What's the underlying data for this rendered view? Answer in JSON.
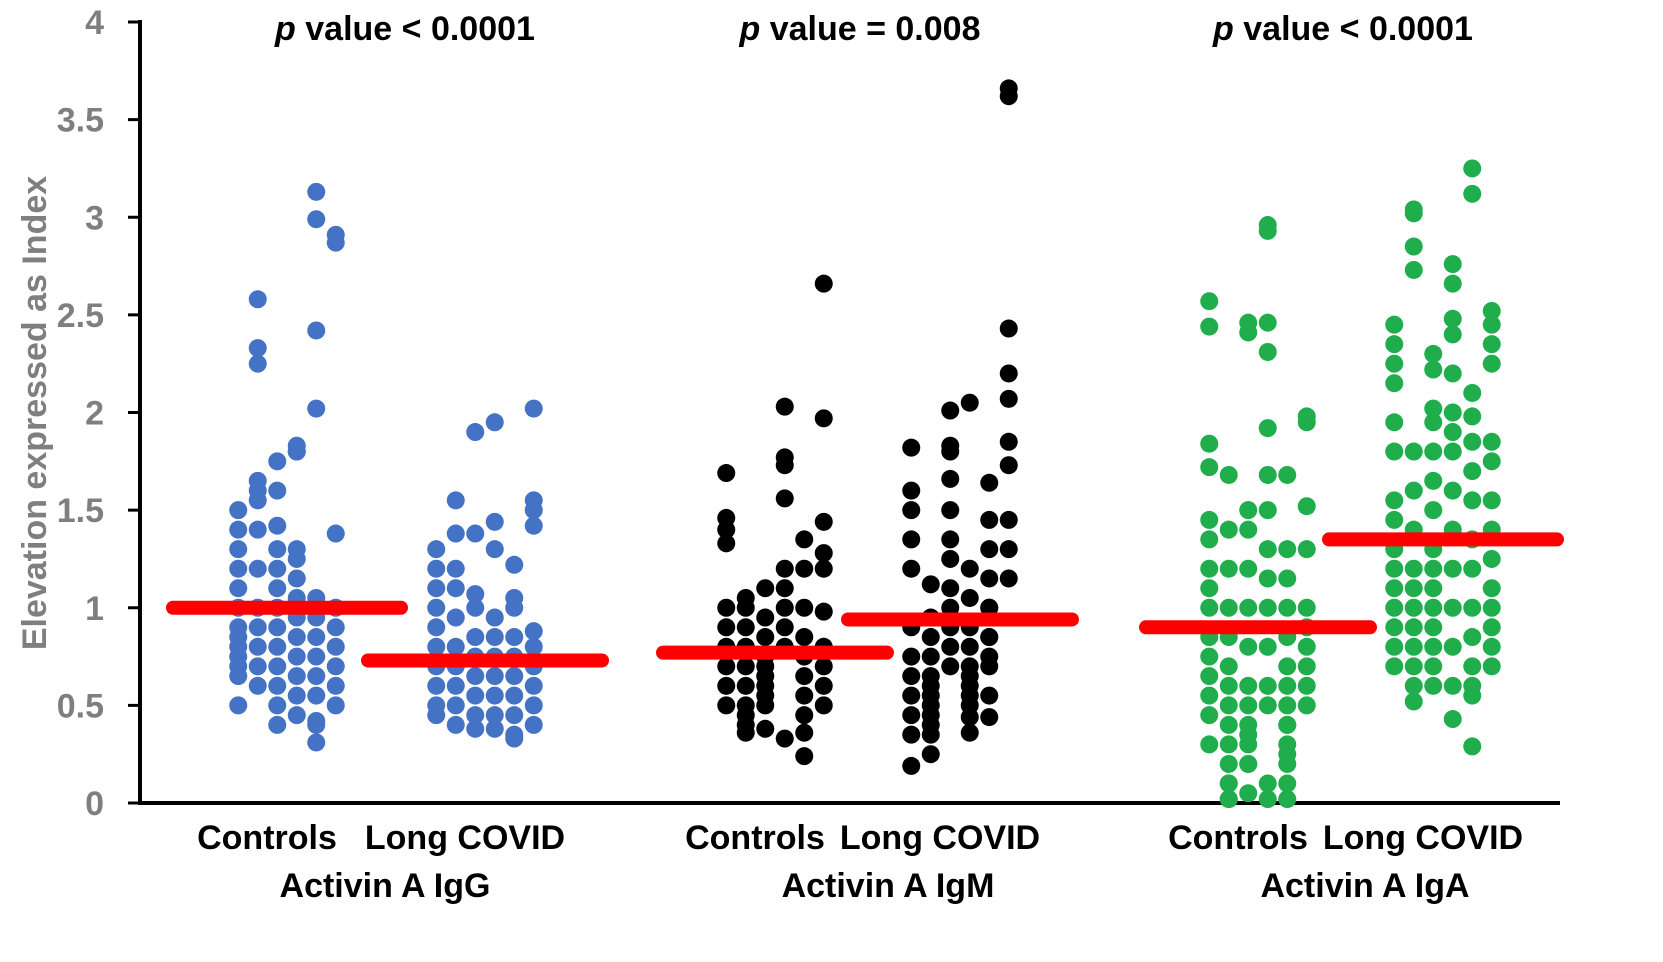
{
  "chart_data": {
    "type": "scatter",
    "ylabel": "Elevation expressed as Index",
    "ylim": [
      0,
      4
    ],
    "yticks": [
      0,
      0.5,
      1,
      1.5,
      2,
      2.5,
      3,
      3.5,
      4
    ],
    "ytick_labels": [
      "0",
      "0.5",
      "1",
      "1.5",
      "2",
      "2.5",
      "3",
      "3.5",
      "4"
    ],
    "median_color": "#ff0000",
    "groups": [
      {
        "name": "Activin A IgG",
        "p_symbol": "p",
        "p_text": " value < 0.0001",
        "color": "#4472c4",
        "categories": [
          {
            "name": "Controls",
            "median": 1.0,
            "values": [
              0.5,
              0.65,
              0.7,
              0.75,
              0.8,
              0.85,
              0.9,
              1.0,
              1.1,
              1.2,
              1.3,
              1.4,
              1.5,
              1.55,
              2.25,
              2.33,
              2.58,
              0.6,
              0.7,
              0.8,
              0.9,
              1.0,
              1.2,
              1.4,
              1.6,
              1.65,
              1.75,
              0.4,
              0.5,
              0.6,
              0.7,
              0.8,
              0.9,
              1.0,
              1.1,
              1.2,
              1.3,
              1.42,
              1.6,
              1.8,
              0.45,
              0.55,
              0.65,
              0.75,
              0.85,
              0.95,
              1.05,
              1.15,
              1.25,
              1.3,
              1.8,
              1.83,
              2.02,
              2.42,
              0.31,
              0.42,
              0.55,
              0.65,
              0.75,
              0.85,
              0.95,
              1.05,
              2.99,
              3.13,
              0.4,
              0.5,
              0.6,
              0.7,
              0.8,
              0.9,
              1.0,
              1.38,
              2.87,
              2.91
            ]
          },
          {
            "name": "Long COVID",
            "median": 0.73,
            "values": [
              0.45,
              0.5,
              0.6,
              0.7,
              0.8,
              0.9,
              1.0,
              1.1,
              1.2,
              1.3,
              1.38,
              1.55,
              0.4,
              0.5,
              0.6,
              0.7,
              0.8,
              0.95,
              1.1,
              1.2,
              1.38,
              0.38,
              0.45,
              0.55,
              0.65,
              0.75,
              0.85,
              1.0,
              1.07,
              1.9,
              1.95,
              0.38,
              0.45,
              0.55,
              0.65,
              0.75,
              0.85,
              0.95,
              1.3,
              1.44,
              0.35,
              0.45,
              0.55,
              0.65,
              0.75,
              0.85,
              1.0,
              1.05,
              1.22,
              0.33,
              0.4,
              0.5,
              0.6,
              0.7,
              0.8,
              0.88,
              1.42,
              1.5,
              1.55,
              2.02
            ]
          }
        ]
      },
      {
        "name": "Activin A IgM",
        "p_symbol": "p",
        "p_text": " value = 0.008",
        "color": "#000000",
        "categories": [
          {
            "name": "Controls",
            "median": 0.77,
            "values": [
              0.5,
              0.6,
              0.7,
              0.8,
              0.9,
              1.0,
              1.33,
              1.4,
              1.46,
              1.69,
              0.4,
              0.5,
              0.6,
              0.7,
              0.8,
              0.9,
              1.0,
              1.05,
              0.36,
              0.45,
              0.55,
              0.65,
              0.75,
              0.85,
              0.95,
              1.1,
              0.38,
              0.5,
              0.6,
              0.7,
              0.8,
              0.9,
              1.0,
              1.1,
              1.2,
              1.56,
              1.73,
              1.77,
              2.03,
              0.33,
              0.45,
              0.55,
              0.65,
              0.75,
              0.85,
              1.0,
              1.2,
              1.35,
              0.24,
              0.36,
              0.5,
              0.6,
              0.7,
              0.8,
              0.98,
              1.2,
              1.28,
              1.44,
              1.97,
              2.66
            ]
          },
          {
            "name": "Long COVID",
            "median": 0.94,
            "values": [
              0.19,
              0.35,
              0.45,
              0.55,
              0.65,
              0.75,
              0.9,
              1.2,
              1.35,
              1.5,
              1.6,
              1.82,
              0.25,
              0.35,
              0.45,
              0.55,
              0.65,
              0.75,
              0.85,
              0.95,
              1.12,
              0.4,
              0.5,
              0.6,
              0.7,
              0.8,
              0.9,
              1.0,
              1.1,
              1.25,
              1.35,
              1.5,
              1.66,
              1.8,
              1.83,
              2.01,
              2.05,
              0.36,
              0.5,
              0.6,
              0.7,
              0.8,
              0.9,
              1.05,
              1.2,
              0.44,
              0.55,
              0.65,
              0.75,
              0.85,
              1.0,
              1.15,
              1.3,
              1.45,
              1.64,
              0.44,
              0.55,
              0.7,
              0.85,
              1.0,
              1.15,
              1.3,
              1.45,
              1.73,
              1.85,
              2.07,
              2.2,
              2.43,
              3.62,
              3.66
            ]
          }
        ]
      },
      {
        "name": "Activin A IgA",
        "p_symbol": "p",
        "p_text": " value < 0.0001",
        "color": "#1fae4b",
        "categories": [
          {
            "name": "Controls",
            "median": 0.9,
            "values": [
              0.3,
              0.45,
              0.55,
              0.65,
              0.75,
              0.85,
              1.0,
              1.1,
              1.2,
              1.35,
              1.45,
              1.72,
              1.84,
              2.44,
              2.57,
              0.02,
              0.1,
              0.2,
              0.3,
              0.4,
              0.5,
              0.6,
              0.7,
              0.85,
              1.0,
              1.2,
              1.4,
              1.68,
              0.02,
              0.1,
              0.2,
              0.3,
              0.4,
              0.5,
              0.6,
              0.8,
              1.0,
              1.2,
              1.4,
              1.5,
              2.41,
              2.46,
              0.05,
              0.2,
              0.35,
              0.5,
              0.6,
              0.8,
              1.0,
              1.15,
              1.3,
              1.5,
              1.68,
              1.92,
              2.31,
              2.46,
              2.93,
              2.96,
              0.02,
              0.1,
              0.2,
              0.3,
              0.4,
              0.5,
              0.6,
              0.7,
              0.85,
              1.0,
              1.15,
              1.3,
              1.68,
              0.02,
              0.1,
              0.25,
              0.4,
              0.5,
              0.6,
              0.7,
              0.8,
              0.9,
              1.0,
              1.3,
              1.52,
              1.95,
              1.98
            ]
          },
          {
            "name": "Long COVID",
            "median": 1.35,
            "values": [
              0.7,
              0.8,
              0.9,
              1.0,
              1.1,
              1.2,
              1.3,
              1.45,
              1.55,
              1.8,
              1.95,
              2.15,
              2.25,
              2.35,
              2.45,
              2.73,
              2.85,
              3.02,
              3.04,
              0.52,
              0.6,
              0.7,
              0.8,
              0.9,
              1.0,
              1.1,
              1.2,
              1.4,
              1.6,
              1.8,
              1.95,
              2.02,
              2.22,
              2.3,
              0.6,
              0.7,
              0.8,
              0.9,
              1.0,
              1.1,
              1.2,
              1.3,
              1.5,
              1.65,
              1.8,
              1.9,
              0.6,
              0.8,
              1.0,
              1.2,
              1.4,
              1.6,
              1.8,
              2.0,
              2.2,
              2.4,
              2.48,
              2.66,
              2.76,
              0.43,
              0.55,
              0.7,
              0.85,
              1.0,
              1.2,
              1.35,
              1.55,
              1.7,
              1.85,
              1.98,
              2.1,
              3.12,
              3.25,
              0.29,
              0.6,
              0.7,
              0.8,
              0.9,
              1.0,
              1.1,
              1.25,
              1.4,
              1.55,
              1.75,
              1.85,
              2.25,
              2.35,
              2.45,
              2.52
            ]
          }
        ]
      }
    ]
  }
}
